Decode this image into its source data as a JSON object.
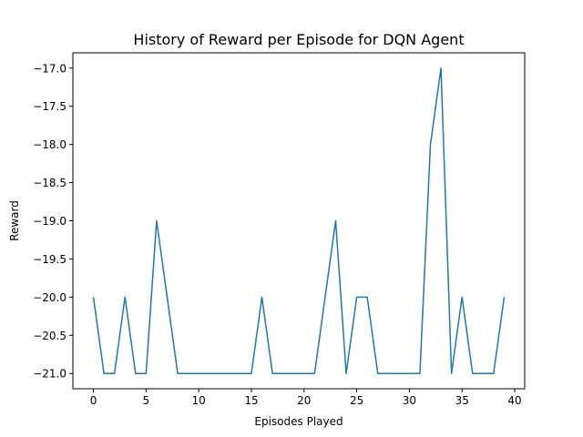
{
  "chart_data": {
    "type": "line",
    "title": "History of Reward per Episode for DQN Agent",
    "xlabel": "Episodes Played",
    "ylabel": "Reward",
    "xlim": [
      -1.95,
      40.95
    ],
    "ylim": [
      -21.2,
      -16.8
    ],
    "xticks": [
      0,
      5,
      10,
      15,
      20,
      25,
      30,
      35,
      40
    ],
    "xtick_labels": [
      "0",
      "5",
      "10",
      "15",
      "20",
      "25",
      "30",
      "35",
      "40"
    ],
    "yticks": [
      -17.0,
      -17.5,
      -18.0,
      -18.5,
      -19.0,
      -19.5,
      -20.0,
      -20.5,
      -21.0
    ],
    "ytick_labels": [
      "−17.0",
      "−17.5",
      "−18.0",
      "−18.5",
      "−19.0",
      "−19.5",
      "−20.0",
      "−20.5",
      "−21.0"
    ],
    "grid": false,
    "series": [
      {
        "color": "#1f77b4",
        "x": [
          0,
          1,
          2,
          3,
          4,
          5,
          6,
          7,
          8,
          9,
          10,
          11,
          12,
          13,
          14,
          15,
          16,
          17,
          18,
          19,
          20,
          21,
          22,
          23,
          24,
          25,
          26,
          27,
          28,
          29,
          30,
          31,
          32,
          33,
          34,
          35,
          36,
          37,
          38,
          39
        ],
        "y": [
          -20,
          -21,
          -21,
          -20,
          -21,
          -21,
          -19,
          -20,
          -21,
          -21,
          -21,
          -21,
          -21,
          -21,
          -21,
          -21,
          -20,
          -21,
          -21,
          -21,
          -21,
          -21,
          -20,
          -19,
          -21,
          -20,
          -20,
          -21,
          -21,
          -21,
          -21,
          -21,
          -18,
          -17,
          -21,
          -20,
          -21,
          -21,
          -21,
          -20
        ]
      }
    ]
  }
}
